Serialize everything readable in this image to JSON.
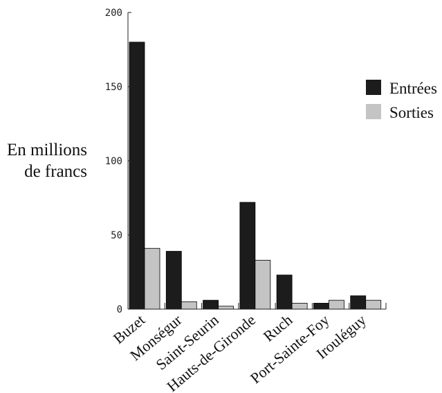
{
  "chart_data": {
    "type": "bar",
    "title": "",
    "ylabel_lines": [
      "En millions",
      "de francs"
    ],
    "categories": [
      "Buzet",
      "Monségur",
      "Saint-Seurin",
      "Hauts-de-Gironde",
      "Ruch",
      "Port-Sainte-Foy",
      "Irouléguy"
    ],
    "series": [
      {
        "name": "Entrées",
        "color": "#1c1c1c",
        "values": [
          180,
          39,
          6,
          72,
          23,
          4,
          9
        ]
      },
      {
        "name": "Sorties",
        "color": "#c4c4c4",
        "values": [
          41,
          5,
          2,
          33,
          4,
          6,
          6
        ]
      }
    ],
    "yticks": [
      0,
      50,
      100,
      150,
      200
    ],
    "ylim": [
      0,
      200
    ],
    "grid": false,
    "legend_position": "right"
  }
}
